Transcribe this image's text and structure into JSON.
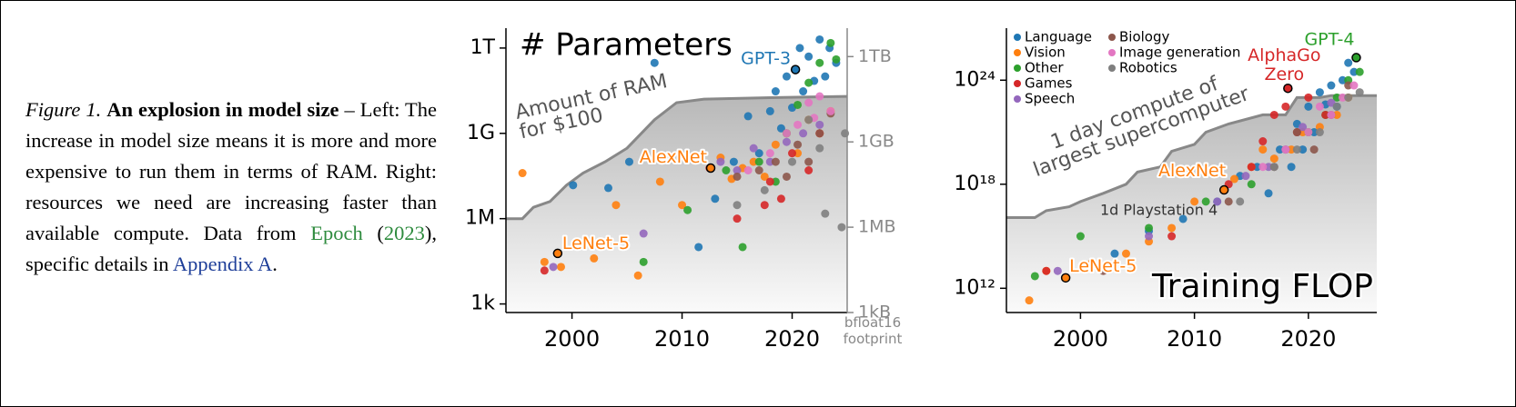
{
  "caption": {
    "label": "Figure 1.",
    "title": "An explosion in model size",
    "body": "– Left: The increase in model size means it is more and more expensive to run them in terms of RAM. Right: resources we need are increasing faster than available compute. Data from",
    "source": "Epoch",
    "open": "(",
    "year": "2023",
    "middle": "), specific details in",
    "appendix": "Appendix A",
    "end": "."
  },
  "chart_data": [
    {
      "type": "scatter",
      "title": "# Parameters",
      "y_scale": "log",
      "xlim": [
        1994,
        2025
      ],
      "xticks": [
        2000,
        2010,
        2020
      ],
      "ylim": [
        500,
        5000000000000.0
      ],
      "yticks": [
        {
          "value": 1000,
          "label": "1k"
        },
        {
          "value": 1000000,
          "label": "1M"
        },
        {
          "value": 1000000000,
          "label": "1G"
        },
        {
          "value": 1000000000000,
          "label": "1T"
        }
      ],
      "y2lim": [
        1000,
        10000000000000.0
      ],
      "y2ticks": [
        {
          "value": 1000,
          "label": "1kB"
        },
        {
          "value": 1000000,
          "label": "1MB"
        },
        {
          "value": 1000000000,
          "label": "1GB"
        },
        {
          "value": 1000000000000,
          "label": "1TB"
        }
      ],
      "y2label": [
        "bfloat16",
        "footprint"
      ],
      "area": {
        "label": [
          "Amount of RAM",
          "for $100"
        ],
        "color": "#888888",
        "x": [
          1994,
          1995.5,
          1996.5,
          1998,
          1999.5,
          2001,
          2003,
          2005,
          2007.5,
          2009.5,
          2012,
          2018,
          2025
        ],
        "values": [
          1000000,
          1000000,
          2500000,
          4000000,
          15000000,
          40000000,
          100000000,
          300000000,
          3000000000,
          12000000000,
          16000000000,
          18000000000,
          20000000000
        ]
      },
      "series": [
        {
          "color": "#1f77b4",
          "x": [
            2000.1,
            2003.3,
            2005.2,
            2007.5,
            2011.5,
            2013,
            2014.7,
            2016,
            2017,
            2018,
            2018.5,
            2019,
            2019.5,
            2020,
            2020.7,
            2021,
            2021.5,
            2022,
            2022.5,
            2023,
            2023.4,
            2024
          ],
          "values": [
            15000000,
            12000000,
            100000000,
            300000000000,
            100000,
            5000000,
            100000000,
            4000000000,
            200000000,
            6000000000,
            30000000000,
            1500000000,
            100000000000,
            8000000000,
            1000000000000,
            30000000000,
            500000000000,
            70000000000,
            2000000000000,
            100000000000,
            1000000000000,
            300000000000
          ]
        },
        {
          "color": "#ff7f0e",
          "x": [
            1995.5,
            1997.5,
            1999,
            2002,
            2004,
            2006,
            2008,
            2010,
            2013.5,
            2014.5,
            2015.5,
            2016.5,
            2017.5,
            2018.5,
            2019.5,
            2020.5,
            2021.5,
            2022.5,
            2023.5
          ],
          "values": [
            40000000,
            30000,
            20000,
            40000,
            3000000,
            10000,
            20000000,
            3000000,
            140000000,
            25000000,
            60000000,
            100000000,
            30000000,
            400000000,
            1000000000,
            200000000,
            3000000000,
            1000000000,
            6000000000
          ]
        },
        {
          "color": "#2ca02c",
          "x": [
            2006.5,
            2010.5,
            2014,
            2015.5,
            2017,
            2018.5,
            2019.5,
            2020.5,
            2021.5,
            2022.5,
            2023.5,
            2024
          ],
          "values": [
            30000,
            2000000,
            50000000,
            100000,
            100000000,
            20000000,
            1000000000,
            10000000000,
            60000000000,
            300000000000,
            1500000000000,
            400000000000
          ]
        },
        {
          "color": "#d62728",
          "x": [
            1997.5,
            2012.5,
            2015,
            2017.5,
            2018,
            2019,
            2020,
            2021.5,
            2022.5
          ],
          "values": [
            15000,
            60000000,
            1000000,
            3000000,
            20000000,
            5000000,
            200000000,
            50000000,
            1000000000
          ]
        },
        {
          "color": "#9467bd",
          "x": [
            1998.3,
            2006.5,
            2013.5,
            2015,
            2016.5,
            2018,
            2019.5,
            2021,
            2022.5
          ],
          "values": [
            20000,
            300000,
            100000000,
            50000000,
            300000000,
            100000000,
            500000000,
            1000000000,
            2000000000
          ]
        },
        {
          "color": "#8c564b",
          "x": [
            2015,
            2017,
            2018.5,
            2019.5,
            2020.5,
            2021.5,
            2022.5,
            2023.5
          ],
          "values": [
            30000000,
            50000000,
            100000000,
            30000000,
            400000000,
            100000000,
            1000000000,
            5000000000
          ]
        },
        {
          "color": "#e377c2",
          "x": [
            2016,
            2018,
            2019.5,
            2020.5,
            2021.5,
            2022,
            2022.5,
            2023.5
          ],
          "values": [
            50000000,
            200000000,
            1000000000,
            2000000000,
            12000000000,
            3500000000,
            20000000000,
            6000000000
          ]
        },
        {
          "color": "#7f7f7f",
          "x": [
            2015,
            2017.5,
            2020,
            2021.5,
            2022.5,
            2023,
            2024.5,
            2024.8
          ],
          "values": [
            3000000,
            10000000,
            100000000,
            3000000000,
            300000000,
            1500000,
            500000,
            1000000000
          ]
        }
      ],
      "annotations": [
        {
          "text": "GPT-3",
          "x": 2020.3,
          "y": 175000000000,
          "color": "#1f77b4"
        },
        {
          "text": "AlexNet",
          "x": 2012.6,
          "y": 60000000,
          "color": "#ff7f0e"
        },
        {
          "text": "LeNet-5",
          "x": 1998.7,
          "y": 60000,
          "color": "#ff7f0e"
        }
      ]
    },
    {
      "type": "scatter",
      "title": "Training FLOP",
      "y_scale": "log",
      "legend": "upper left",
      "xlim": [
        1993.5,
        2026
      ],
      "xticks": [
        2000,
        2010,
        2020
      ],
      "ylim": [
        40000000000,
        1e+27
      ],
      "yticks": [
        {
          "value": 1000000000000,
          "label": "10¹²"
        },
        {
          "value": 1000000000000000000,
          "label": "10¹⁸"
        },
        {
          "value": 1e+24,
          "label": "10²⁴"
        }
      ],
      "area": {
        "label": [
          "1 day compute of",
          "largest supercomputer"
        ],
        "color": "#888888",
        "x": [
          1993.5,
          1996,
          1997,
          1999,
          2000,
          2002,
          2004,
          2005,
          2007,
          2008,
          2010,
          2011,
          2013,
          2016,
          2018,
          2019,
          2021,
          2022,
          2026
        ],
        "values": [
          12000000000000000,
          12000000000000000,
          30000000000000000,
          50000000000000000,
          100000000000000000,
          300000000000000000,
          1000000000000000000,
          5000000000000000000,
          10000000000000000000,
          80000000000000000000,
          200000000000000000000,
          1e+21,
          3e+21,
          1e+22,
          1e+22,
          1e+23,
          1e+23,
          1.3e+23,
          1.3e+23
        ]
      },
      "note": "1d Playstation 4",
      "series": [
        {
          "name": "Language",
          "color": "#1f77b4",
          "x": [
            2003,
            2006,
            2009,
            2012,
            2014,
            2015.5,
            2016.5,
            2017.5,
            2018.5,
            2019,
            2019.5,
            2020,
            2020.5,
            2021,
            2021.5,
            2022,
            2022.5,
            2023,
            2023.5,
            2024
          ],
          "values": [
            100000000000000,
            2000000000000000,
            10000000000000000,
            100000000000000000,
            3000000000000000000,
            10000000000000000000,
            300000000000000000,
            100000000000000000000,
            10000000000000000000,
            3e+21,
            100000000000000000000,
            3e+22,
            1e+21,
            2e+23,
            4e+22,
            5e+23,
            3e+22,
            1e+24,
            1e+25,
            3e+24
          ]
        },
        {
          "name": "Vision",
          "color": "#ff7f0e",
          "x": [
            1995.5,
            1997,
            2001,
            2004,
            2006,
            2008,
            2010,
            2013.5,
            2015,
            2016,
            2017,
            2018.5,
            2019.5,
            2021,
            2022.5,
            2023.5
          ],
          "values": [
            200000000000,
            10000000000000,
            30000000000000,
            100000000000000,
            500000000000000,
            3000000000000000,
            100000000000000000,
            2000000000000000000,
            10000000000000000000,
            100000000000000000000,
            30000000000000000000,
            100000000000000000000,
            1e+21,
            2e+21,
            1e+22,
            1e+23
          ]
        },
        {
          "name": "Other",
          "color": "#2ca02c",
          "x": [
            1996,
            2000,
            2006,
            2011,
            2015,
            2018,
            2020,
            2021.5,
            2022.5,
            2023.5,
            2024.5
          ],
          "values": [
            5000000000000,
            1000000000000000,
            3000000000000000,
            100000000000000000,
            1000000000000000000,
            100000000000000000000,
            1e+21,
            1e+22,
            1e+23,
            1e+24,
            3e+24
          ]
        },
        {
          "name": "Games",
          "color": "#d62728",
          "x": [
            1997,
            2008,
            2013,
            2015,
            2016,
            2017,
            2018,
            2019,
            2020,
            2021.5
          ],
          "values": [
            10000000000000,
            1000000000000000,
            1000000000000000000,
            10000000000000000000,
            300000000000000000000,
            1e+22,
            3e+22,
            1e+21,
            1e+23,
            1e+22
          ]
        },
        {
          "name": "Speech",
          "color": "#9467bd",
          "x": [
            1998,
            2006,
            2012,
            2014.5,
            2016.5,
            2018,
            2019.5,
            2022
          ],
          "values": [
            10000000000000,
            1000000000000000,
            100000000000000000,
            3000000000000000000,
            10000000000000000000,
            100000000000000000000,
            2e+21,
            5e+22
          ]
        },
        {
          "name": "Biology",
          "color": "#8c564b",
          "x": [
            2002,
            2013,
            2017,
            2019,
            2020.5,
            2022,
            2023.5
          ],
          "values": [
            10000000000000,
            100000000000000000,
            10000000000000000000,
            1e+21,
            100000000000000000000,
            1e+22,
            5e+23
          ]
        },
        {
          "name": "Image generation",
          "color": "#e377c2",
          "x": [
            2016,
            2018,
            2020,
            2021,
            2022,
            2023,
            2024
          ],
          "values": [
            10000000000000000000,
            100000000000000000000,
            1e+21,
            3e+22,
            1e+22,
            1e+23,
            5e+23
          ]
        },
        {
          "name": "Robotics",
          "color": "#7f7f7f",
          "x": [
            2014,
            2017,
            2019,
            2021,
            2022.5,
            2023.5,
            2024.5
          ],
          "values": [
            100000000000000000,
            10000000000000000000,
            100000000000000000000,
            1e+21,
            3e+22,
            1e+23,
            2e+23
          ]
        }
      ],
      "annotations": [
        {
          "text": "GPT-4",
          "x": 2024.2,
          "y": 2e+25,
          "color": "#2ca02c"
        },
        {
          "text": [
            "AlphaGo",
            "Zero"
          ],
          "x": 2018.2,
          "y": 3.4e+23,
          "color": "#d62728"
        },
        {
          "text": "AlexNet",
          "x": 2012.6,
          "y": 470000000000000000,
          "color": "#ff7f0e"
        },
        {
          "text": "LeNet-5",
          "x": 1998.7,
          "y": 4000000000000,
          "color": "#ff7f0e"
        }
      ]
    }
  ]
}
